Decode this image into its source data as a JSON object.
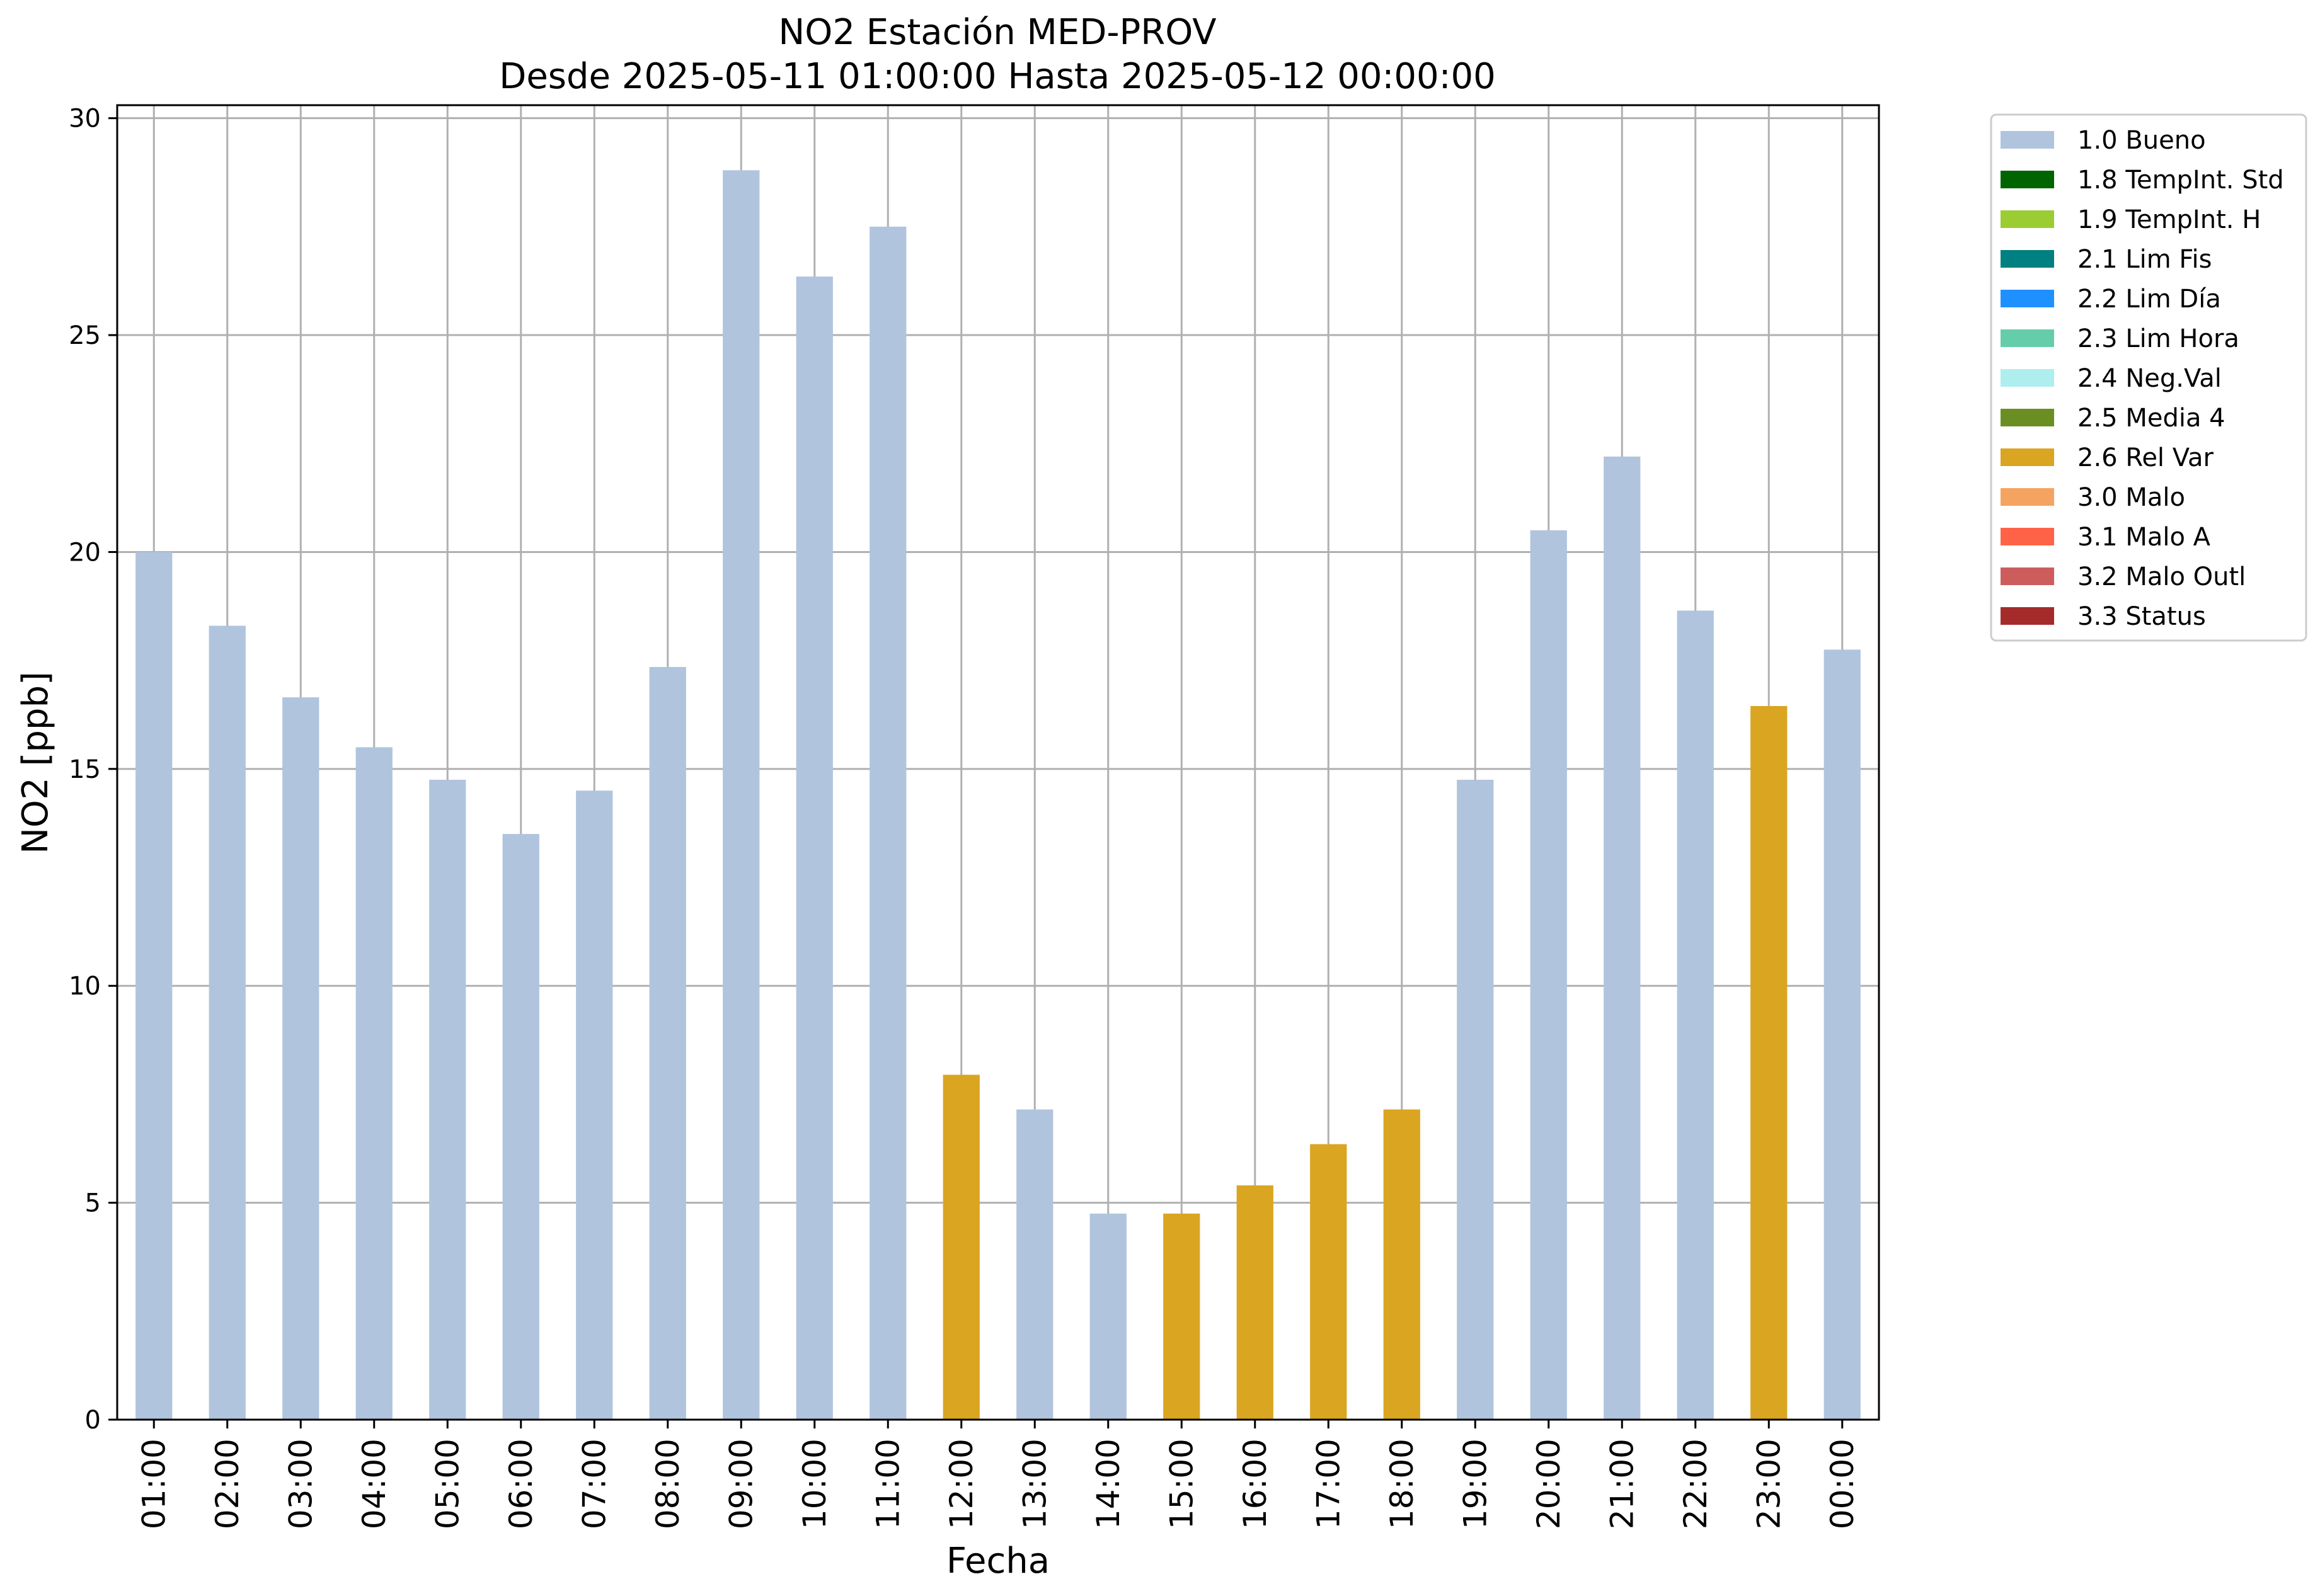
{
  "chart_data": {
    "type": "bar",
    "title": "NO2 Estación MED-PROV",
    "subtitle": "Desde 2025-05-11 01:00:00 Hasta 2025-05-12 00:00:00",
    "xlabel": "Fecha",
    "ylabel": "NO2 [ppb]",
    "ylim": [
      0,
      30.3
    ],
    "yticks": [
      0,
      5,
      10,
      15,
      20,
      25,
      30
    ],
    "grid": true,
    "legend_position": "outside-right",
    "categories": [
      "01:00",
      "02:00",
      "03:00",
      "04:00",
      "05:00",
      "06:00",
      "07:00",
      "08:00",
      "09:00",
      "10:00",
      "11:00",
      "12:00",
      "13:00",
      "14:00",
      "15:00",
      "16:00",
      "17:00",
      "18:00",
      "19:00",
      "20:00",
      "21:00",
      "22:00",
      "23:00",
      "00:00"
    ],
    "values": [
      20.0,
      18.3,
      16.65,
      15.5,
      14.75,
      13.5,
      14.5,
      17.35,
      28.8,
      26.35,
      27.5,
      7.95,
      7.15,
      4.75,
      4.75,
      5.4,
      6.35,
      7.15,
      14.75,
      20.5,
      22.2,
      18.65,
      16.45,
      17.75
    ],
    "flags": [
      "1.0 Bueno",
      "1.0 Bueno",
      "1.0 Bueno",
      "1.0 Bueno",
      "1.0 Bueno",
      "1.0 Bueno",
      "1.0 Bueno",
      "1.0 Bueno",
      "1.0 Bueno",
      "1.0 Bueno",
      "1.0 Bueno",
      "2.6 Rel Var",
      "1.0 Bueno",
      "1.0 Bueno",
      "2.6 Rel Var",
      "2.6 Rel Var",
      "2.6 Rel Var",
      "2.6 Rel Var",
      "1.0 Bueno",
      "1.0 Bueno",
      "1.0 Bueno",
      "1.0 Bueno",
      "2.6 Rel Var",
      "1.0 Bueno"
    ],
    "legend": [
      {
        "label": "1.0 Bueno",
        "color": "#b0c4de"
      },
      {
        "label": "1.8 TempInt. Std",
        "color": "#006400"
      },
      {
        "label": "1.9 TempInt. H",
        "color": "#9acd32"
      },
      {
        "label": "2.1 Lim Fis",
        "color": "#008080"
      },
      {
        "label": "2.2 Lim Día",
        "color": "#1e90ff"
      },
      {
        "label": "2.3 Lim Hora",
        "color": "#66cdaa"
      },
      {
        "label": "2.4 Neg.Val",
        "color": "#afeeee"
      },
      {
        "label": "2.5 Media 4",
        "color": "#6b8e23"
      },
      {
        "label": "2.6 Rel Var",
        "color": "#daa520"
      },
      {
        "label": "3.0 Malo",
        "color": "#f4a460"
      },
      {
        "label": "3.1 Malo A",
        "color": "#ff6347"
      },
      {
        "label": "3.2 Malo Outl",
        "color": "#cd5c5c"
      },
      {
        "label": "3.3 Status",
        "color": "#a52a2a"
      }
    ]
  }
}
